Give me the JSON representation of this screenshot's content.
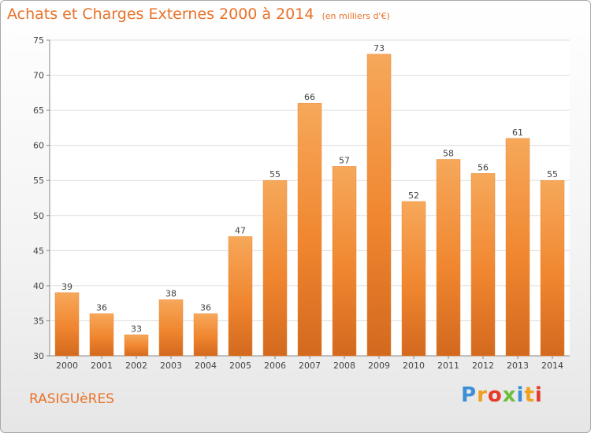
{
  "chart_data": {
    "type": "bar",
    "title": "Achats et Charges Externes 2000 à 2014",
    "subtitle": "(en milliers d'€)",
    "categories": [
      "2000",
      "2001",
      "2002",
      "2003",
      "2004",
      "2005",
      "2006",
      "2007",
      "2008",
      "2009",
      "2010",
      "2011",
      "2012",
      "2013",
      "2014"
    ],
    "values": [
      39,
      36,
      33,
      38,
      36,
      47,
      55,
      66,
      57,
      73,
      52,
      58,
      56,
      61,
      55
    ],
    "ylim": [
      30,
      75
    ],
    "yticks": [
      30,
      35,
      40,
      45,
      50,
      55,
      60,
      65,
      70,
      75
    ],
    "xlabel": "",
    "ylabel": "",
    "grid": true,
    "bar_color": "#f0862f",
    "bar_color_light": "#f6a85a",
    "bar_color_dark": "#d2691e"
  },
  "commune": "RASIGUèRES",
  "logo": {
    "text": "Proxiti",
    "colors": [
      "#3c8fd6",
      "#f0a020",
      "#e53a2a",
      "#6cbf3a",
      "#3c8fd6",
      "#f0a020",
      "#e53a2a"
    ]
  }
}
